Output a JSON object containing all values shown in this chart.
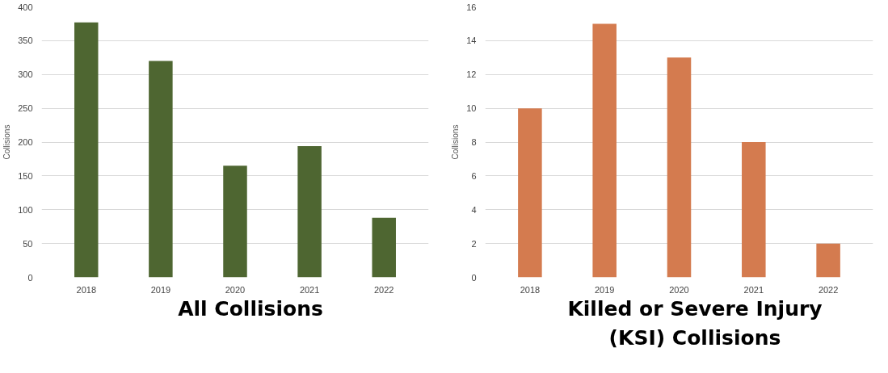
{
  "chart_data": [
    {
      "type": "bar",
      "title": "All Collisions",
      "ylabel": "Collisions",
      "categories": [
        "2018",
        "2019",
        "2020",
        "2021",
        "2022"
      ],
      "values": [
        377,
        320,
        165,
        194,
        88
      ],
      "color": "#4e6631",
      "ylim": [
        0,
        400
      ],
      "yticks": [
        0,
        50,
        100,
        150,
        200,
        250,
        300,
        350,
        400
      ],
      "grid": "y"
    },
    {
      "type": "bar",
      "title": "Killed or Severe Injury (KSI) Collisions",
      "ylabel": "Collisions",
      "categories": [
        "2018",
        "2019",
        "2020",
        "2021",
        "2022"
      ],
      "values": [
        10,
        15,
        13,
        8,
        2
      ],
      "color": "#d47b4f",
      "ylim": [
        0,
        16
      ],
      "yticks": [
        0,
        2,
        4,
        6,
        8,
        10,
        12,
        14,
        16
      ],
      "grid": "y"
    }
  ]
}
